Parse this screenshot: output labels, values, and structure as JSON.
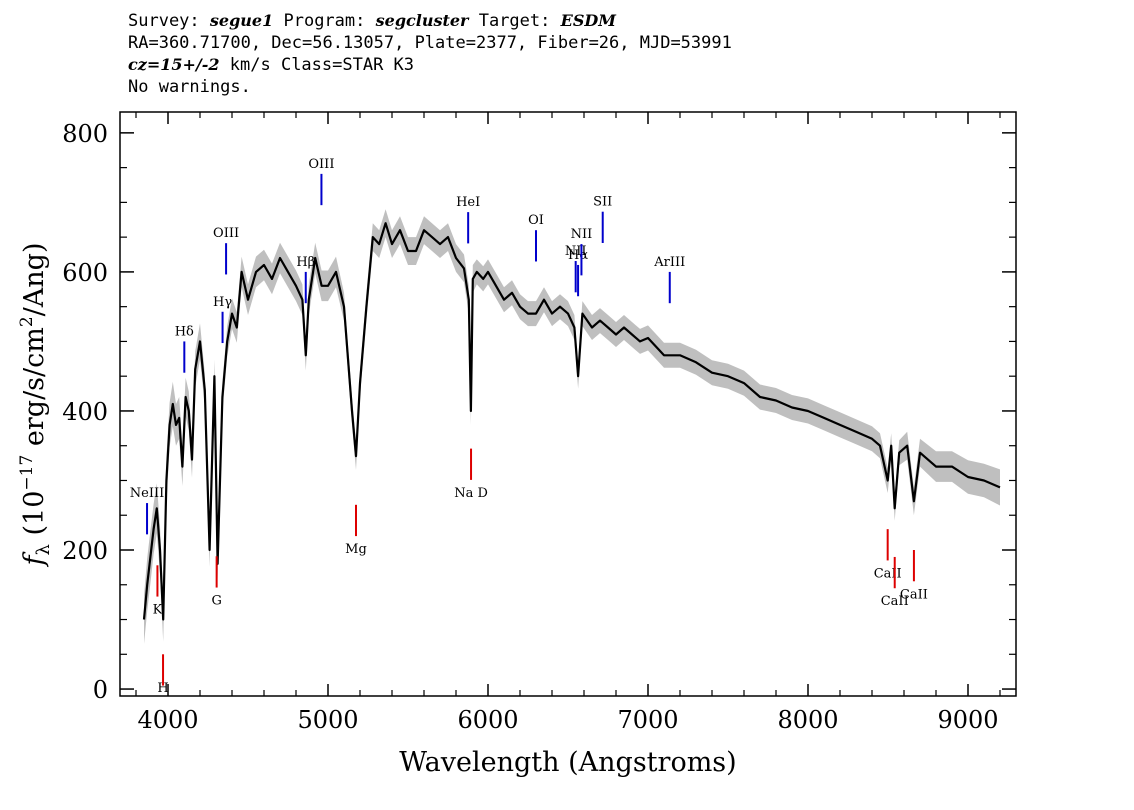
{
  "header": {
    "survey_label": "Survey:",
    "survey_value": "segue1",
    "program_label": "Program:",
    "program_value": "segcluster",
    "target_label": "Target:",
    "target_value": "ESDM",
    "line2": "RA=360.71700, Dec=56.13057, Plate=2377, Fiber=26, MJD=53991",
    "cz_label": "cz",
    "cz_value": "=15+/-2",
    "cz_rest": "km/s Class=STAR K3",
    "warnings": "No warnings."
  },
  "chart_data": {
    "type": "line",
    "title": "",
    "xlabel": "Wavelength (Angstroms)",
    "ylabel": "f_λ (10^-17 erg/s/cm^2/Ang)",
    "ylabel_parts": {
      "f": "f",
      "lambda": "λ",
      "open": " (10",
      "exp1": "−17",
      "mid": " erg/s/cm",
      "exp2": "2",
      "close": "/Ang)"
    },
    "xlim": [
      3700,
      9300
    ],
    "ylim": [
      -10,
      830
    ],
    "xticks": [
      4000,
      5000,
      6000,
      7000,
      8000,
      9000
    ],
    "xtick_labels": [
      "4000",
      "5000",
      "6000",
      "7000",
      "8000",
      "9000"
    ],
    "yticks": [
      0,
      200,
      400,
      600,
      800
    ],
    "ytick_labels": [
      "0",
      "200",
      "400",
      "600",
      "800"
    ],
    "colors": {
      "flux": "#000000",
      "error_band": "#bfbfbf",
      "emission": "#0000cc",
      "absorption": "#dd0000"
    },
    "series": [
      {
        "name": "flux",
        "x": [
          3850,
          3870,
          3890,
          3910,
          3930,
          3950,
          3970,
          3990,
          4010,
          4030,
          4050,
          4070,
          4090,
          4110,
          4130,
          4150,
          4170,
          4200,
          4230,
          4260,
          4290,
          4310,
          4340,
          4370,
          4400,
          4430,
          4460,
          4500,
          4550,
          4600,
          4650,
          4700,
          4750,
          4800,
          4840,
          4861,
          4880,
          4920,
          4960,
          5000,
          5050,
          5100,
          5150,
          5175,
          5200,
          5240,
          5280,
          5320,
          5360,
          5400,
          5450,
          5500,
          5550,
          5600,
          5650,
          5700,
          5750,
          5800,
          5850,
          5880,
          5893,
          5905,
          5930,
          5970,
          6000,
          6050,
          6100,
          6150,
          6200,
          6250,
          6300,
          6350,
          6400,
          6450,
          6500,
          6540,
          6563,
          6590,
          6650,
          6700,
          6750,
          6800,
          6850,
          6900,
          6950,
          7000,
          7100,
          7200,
          7300,
          7400,
          7500,
          7600,
          7700,
          7800,
          7900,
          8000,
          8100,
          8200,
          8300,
          8400,
          8450,
          8498,
          8520,
          8542,
          8570,
          8620,
          8662,
          8700,
          8800,
          8900,
          9000,
          9100,
          9200
        ],
        "values": [
          100,
          150,
          190,
          230,
          260,
          200,
          100,
          300,
          380,
          410,
          380,
          390,
          320,
          420,
          400,
          330,
          460,
          500,
          430,
          200,
          450,
          180,
          420,
          500,
          540,
          520,
          600,
          560,
          600,
          610,
          590,
          620,
          600,
          580,
          560,
          480,
          560,
          620,
          580,
          580,
          600,
          550,
          400,
          335,
          440,
          550,
          650,
          640,
          670,
          640,
          660,
          630,
          630,
          660,
          650,
          640,
          650,
          620,
          605,
          560,
          400,
          590,
          600,
          590,
          600,
          580,
          560,
          570,
          550,
          540,
          540,
          560,
          540,
          550,
          540,
          520,
          450,
          540,
          520,
          530,
          520,
          510,
          520,
          510,
          500,
          505,
          480,
          480,
          470,
          455,
          450,
          440,
          420,
          415,
          405,
          400,
          390,
          380,
          370,
          360,
          350,
          300,
          350,
          260,
          340,
          350,
          270,
          340,
          320,
          320,
          305,
          300,
          290
        ]
      },
      {
        "name": "error",
        "values": [
          35,
          38,
          38,
          36,
          36,
          34,
          32,
          34,
          32,
          32,
          30,
          30,
          28,
          28,
          28,
          26,
          26,
          26,
          24,
          24,
          24,
          22,
          22,
          22,
          22,
          22,
          22,
          22,
          22,
          22,
          22,
          22,
          22,
          22,
          22,
          22,
          22,
          22,
          22,
          22,
          22,
          20,
          20,
          20,
          20,
          20,
          20,
          20,
          20,
          20,
          20,
          20,
          20,
          20,
          20,
          20,
          20,
          20,
          20,
          20,
          20,
          20,
          18,
          18,
          18,
          18,
          18,
          18,
          18,
          18,
          18,
          18,
          18,
          18,
          18,
          18,
          18,
          18,
          18,
          18,
          18,
          18,
          18,
          18,
          18,
          18,
          18,
          18,
          18,
          18,
          18,
          18,
          18,
          18,
          18,
          18,
          18,
          18,
          18,
          18,
          18,
          18,
          18,
          18,
          18,
          20,
          20,
          20,
          22,
          22,
          24,
          24,
          26
        ]
      }
    ],
    "emission_lines": [
      {
        "label": "NeIII",
        "x": 3869
      },
      {
        "label": "Hδ",
        "x": 4102
      },
      {
        "label": "Hγ",
        "x": 4341
      },
      {
        "label": "OIII",
        "x": 4363
      },
      {
        "label": "Hβ",
        "x": 4861
      },
      {
        "label": "OIII",
        "x": 4959
      },
      {
        "label": "HeI",
        "x": 5876
      },
      {
        "label": "OI",
        "x": 6300
      },
      {
        "label": "NII",
        "x": 6548
      },
      {
        "label": "Hα",
        "x": 6563
      },
      {
        "label": "NII",
        "x": 6584
      },
      {
        "label": "SII",
        "x": 6717
      },
      {
        "label": "ArIII",
        "x": 7136
      }
    ],
    "absorption_lines": [
      {
        "label": "K",
        "x": 3934
      },
      {
        "label": "H",
        "x": 3969
      },
      {
        "label": "G",
        "x": 4304
      },
      {
        "label": "Mg",
        "x": 5175
      },
      {
        "label": "Na D",
        "x": 5894
      },
      {
        "label": "CaII",
        "x": 8498
      },
      {
        "label": "CaII",
        "x": 8542
      },
      {
        "label": "CaII",
        "x": 8662
      }
    ]
  }
}
